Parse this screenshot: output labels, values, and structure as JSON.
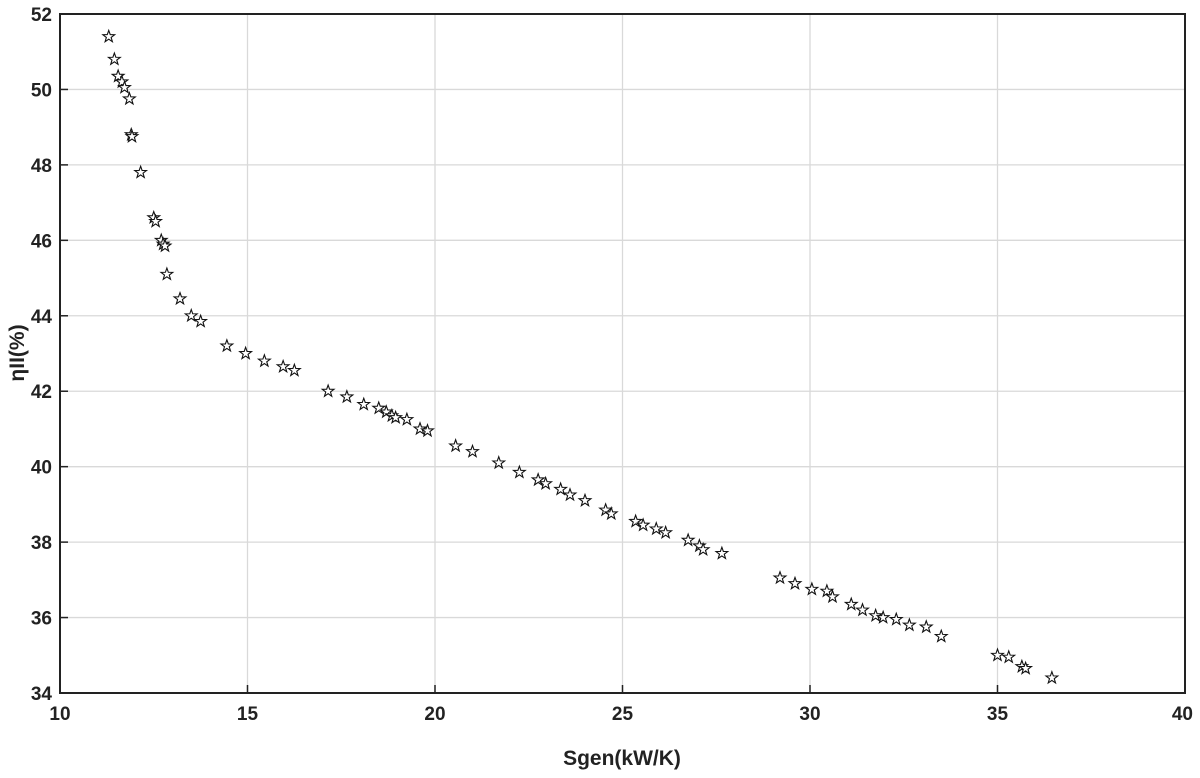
{
  "chart_data": {
    "type": "scatter",
    "title": "",
    "xlabel": "Sgen(kW/K)",
    "ylabel": "ηII(%)",
    "xlim": [
      10,
      40
    ],
    "ylim": [
      34,
      52
    ],
    "xticks": [
      10,
      15,
      20,
      25,
      30,
      35,
      40
    ],
    "yticks": [
      34,
      36,
      38,
      40,
      42,
      44,
      46,
      48,
      50,
      52
    ],
    "grid": true,
    "legend": "none",
    "marker": "pentagram",
    "marker_color": "#111111",
    "series": [
      {
        "x": [
          11.3,
          11.45,
          11.55,
          11.65,
          11.72,
          11.85,
          11.9,
          11.92,
          12.15,
          12.5,
          12.55,
          12.7,
          12.75,
          12.8,
          12.85,
          13.2,
          13.5,
          13.75,
          14.45,
          14.95,
          15.45,
          15.95,
          16.25,
          17.15,
          17.65,
          18.1,
          18.5,
          18.7,
          18.85,
          18.95,
          19.25,
          19.6,
          19.8,
          20.55,
          21.0,
          21.7,
          22.25,
          22.75,
          22.95,
          23.35,
          23.6,
          24.0,
          24.55,
          24.7,
          25.35,
          25.55,
          25.9,
          26.15,
          26.75,
          27.05,
          27.15,
          27.65,
          29.2,
          29.6,
          30.05,
          30.45,
          30.6,
          31.1,
          31.4,
          31.75,
          31.95,
          32.3,
          32.65,
          33.1,
          33.5,
          35.0,
          35.3,
          35.65,
          35.75,
          36.45
        ],
        "y": [
          51.4,
          50.8,
          50.35,
          50.2,
          50.05,
          49.75,
          48.8,
          48.75,
          47.8,
          46.6,
          46.5,
          46.0,
          45.9,
          45.85,
          45.1,
          44.45,
          44.0,
          43.85,
          43.2,
          43.0,
          42.8,
          42.65,
          42.55,
          42.0,
          41.85,
          41.65,
          41.55,
          41.45,
          41.35,
          41.3,
          41.25,
          41.0,
          40.95,
          40.55,
          40.4,
          40.1,
          39.85,
          39.65,
          39.55,
          39.4,
          39.25,
          39.1,
          38.85,
          38.75,
          38.55,
          38.45,
          38.35,
          38.25,
          38.05,
          37.9,
          37.8,
          37.7,
          37.05,
          36.9,
          36.75,
          36.7,
          36.55,
          36.35,
          36.2,
          36.05,
          36.0,
          35.95,
          35.8,
          35.75,
          35.5,
          35.0,
          34.95,
          34.7,
          34.65,
          34.4
        ]
      }
    ]
  }
}
